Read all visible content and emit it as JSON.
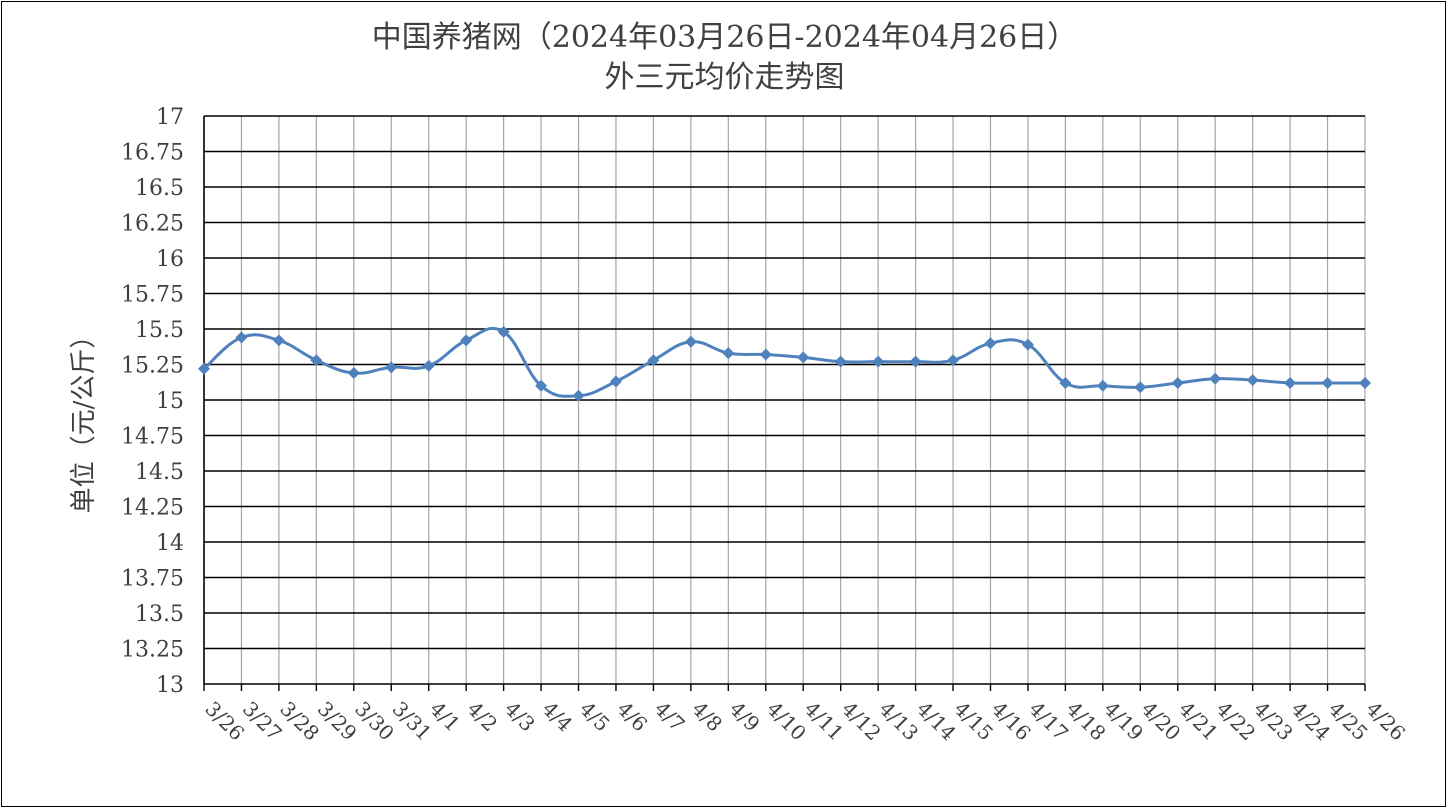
{
  "chart_data": {
    "type": "line",
    "title_line1": "中国养猪网（2024年03月26日-2024年04月26日）",
    "title_line2": "外三元均价走势图",
    "ylabel": "单位（元/公斤）",
    "xlabel": "",
    "ylim": [
      13,
      17
    ],
    "ytick_step": 0.25,
    "yticks": [
      "13",
      "13.25",
      "13.5",
      "13.75",
      "14",
      "14.25",
      "14.5",
      "14.75",
      "15",
      "15.25",
      "15.5",
      "15.75",
      "16",
      "16.25",
      "16.5",
      "16.75",
      "17"
    ],
    "categories": [
      "3/26",
      "3/27",
      "3/28",
      "3/29",
      "3/30",
      "3/31",
      "4/1",
      "4/2",
      "4/3",
      "4/4",
      "4/5",
      "4/6",
      "4/7",
      "4/8",
      "4/9",
      "4/10",
      "4/11",
      "4/12",
      "4/13",
      "4/14",
      "4/15",
      "4/16",
      "4/17",
      "4/18",
      "4/19",
      "4/20",
      "4/21",
      "4/22",
      "4/23",
      "4/24",
      "4/25",
      "4/26"
    ],
    "values": [
      15.22,
      15.44,
      15.42,
      15.28,
      15.19,
      15.23,
      15.24,
      15.42,
      15.48,
      15.1,
      15.03,
      15.13,
      15.28,
      15.41,
      15.33,
      15.32,
      15.3,
      15.27,
      15.27,
      15.27,
      15.28,
      15.4,
      15.39,
      15.12,
      15.1,
      15.09,
      15.12,
      15.15,
      15.14,
      15.12,
      15.12,
      15.12
    ],
    "grid": true,
    "legend": "none",
    "line_color": "#4F81BD",
    "marker": "diamond"
  }
}
